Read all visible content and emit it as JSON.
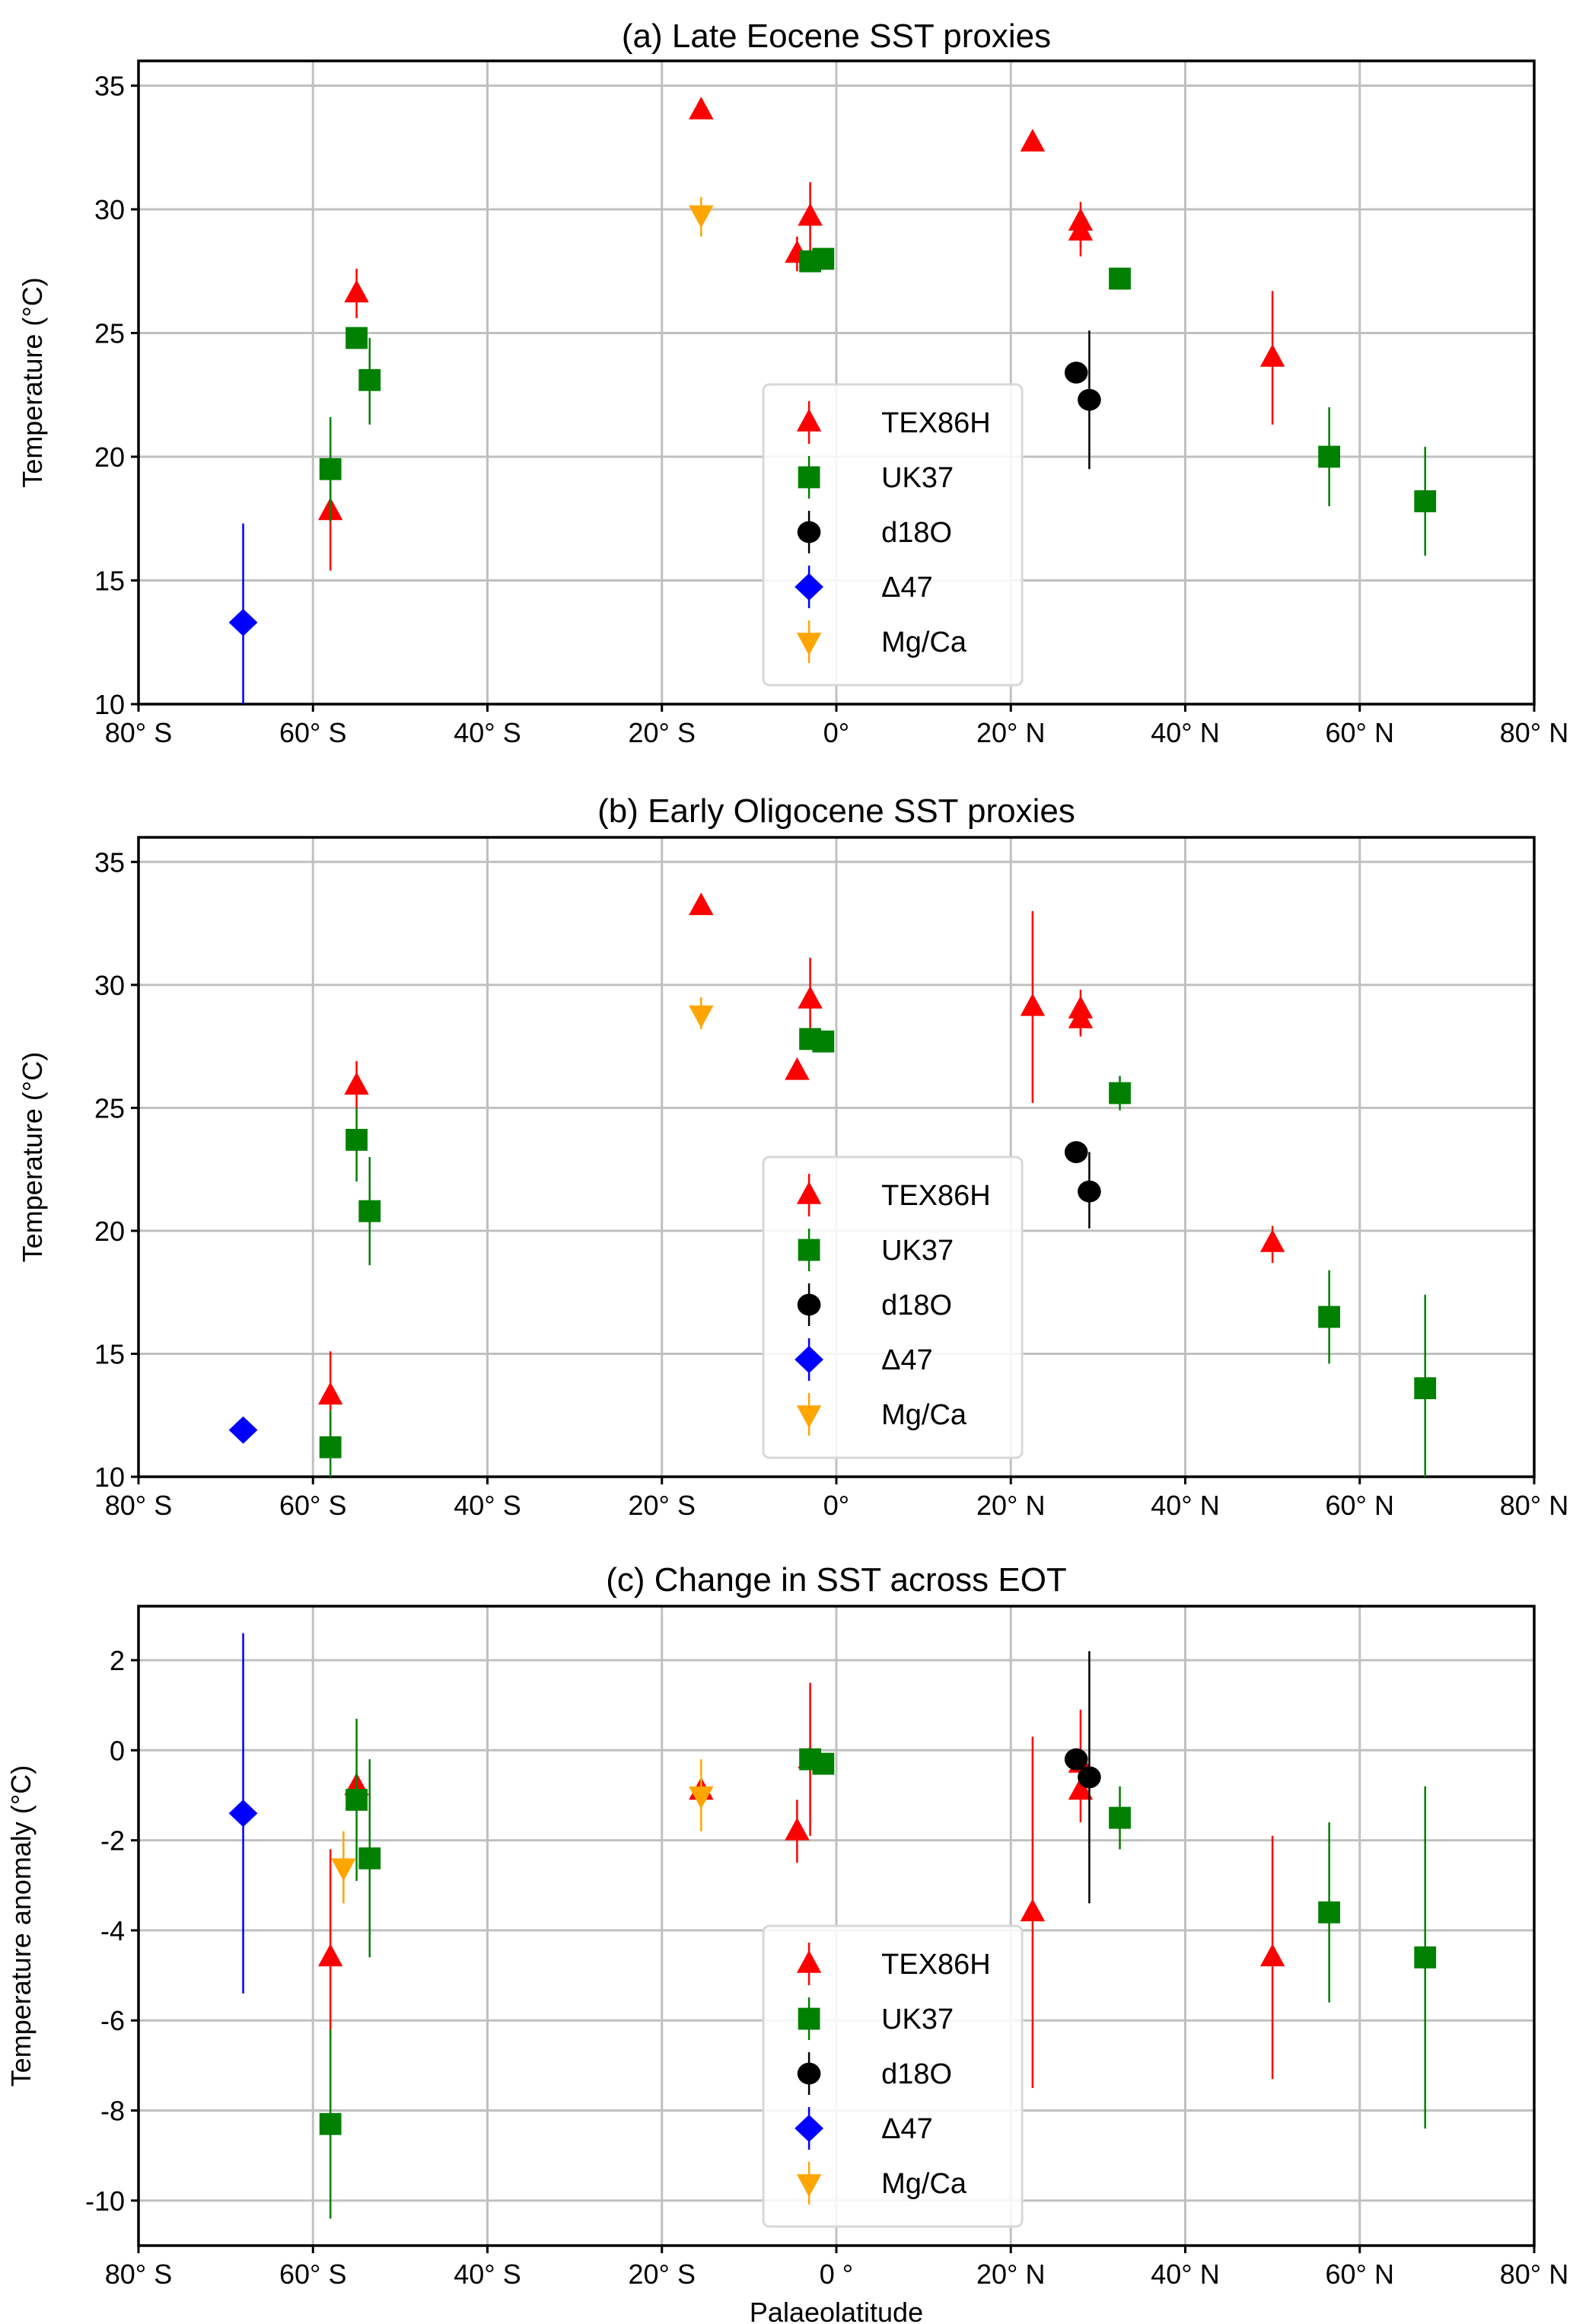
{
  "figure": {
    "xlabel": "Palaeolatitude",
    "legend_placement": "center-bottom"
  },
  "colors": {
    "TEX86H": "#ff0000",
    "UK37": "#008000",
    "d18O": "#000000",
    "D47": "#0000ff",
    "MgCa": "#ffa500",
    "grid": "#c0c0c0"
  },
  "chart_data": [
    {
      "type": "scatter",
      "title": "(a) Late Eocene SST proxies",
      "xlabel": "",
      "ylabel": "Temperature (°C)",
      "xlim": [
        -80,
        80
      ],
      "ylim": [
        10,
        36
      ],
      "grid": true,
      "xticks": [
        -80,
        -60,
        -40,
        -20,
        0,
        20,
        40,
        60,
        80
      ],
      "xtick_labels": [
        "80° S",
        "60° S",
        "40° S",
        "20° S",
        "0°",
        "20° N",
        "40° N",
        "60° N",
        "80° N"
      ],
      "yticks": [
        10,
        15,
        20,
        25,
        30,
        35
      ],
      "ytick_labels": [
        "10",
        "15",
        "20",
        "25",
        "30",
        "35"
      ],
      "legend": [
        "TEX86H",
        "UK37",
        "d18O",
        "Δ47",
        "Mg/Ca"
      ],
      "series": [
        {
          "name": "TEX86H",
          "marker": "triangle-up",
          "points": [
            {
              "x": -58,
              "y": 17.8,
              "lo": 15.4,
              "hi": 20.0
            },
            {
              "x": -55,
              "y": 26.6,
              "lo": 25.6,
              "hi": 27.6
            },
            {
              "x": -15.5,
              "y": 34.0,
              "lo": 34.0,
              "hi": 34.0
            },
            {
              "x": -4.5,
              "y": 28.2,
              "lo": 27.5,
              "hi": 28.9
            },
            {
              "x": -3,
              "y": 29.7,
              "lo": 28.3,
              "hi": 31.1
            },
            {
              "x": 22.5,
              "y": 32.7,
              "lo": 32.4,
              "hi": 33.0
            },
            {
              "x": 28,
              "y": 29.5,
              "lo": 28.1,
              "hi": 30.3
            },
            {
              "x": 28,
              "y": 29.1,
              "lo": 28.5,
              "hi": 29.7
            },
            {
              "x": 50,
              "y": 24.0,
              "lo": 21.3,
              "hi": 26.7
            }
          ]
        },
        {
          "name": "UK37",
          "marker": "square",
          "points": [
            {
              "x": -58,
              "y": 19.5,
              "lo": 17.4,
              "hi": 21.6
            },
            {
              "x": -55,
              "y": 24.8,
              "lo": 24.8,
              "hi": 24.8
            },
            {
              "x": -53.5,
              "y": 23.1,
              "lo": 21.3,
              "hi": 24.8
            },
            {
              "x": -3,
              "y": 27.9,
              "lo": 27.9,
              "hi": 27.9
            },
            {
              "x": -1.5,
              "y": 28.0,
              "lo": 28.0,
              "hi": 28.0
            },
            {
              "x": 32.5,
              "y": 27.2,
              "lo": 27.2,
              "hi": 27.2
            },
            {
              "x": 56.5,
              "y": 20.0,
              "lo": 18.0,
              "hi": 22.0
            },
            {
              "x": 67.5,
              "y": 18.2,
              "lo": 16.0,
              "hi": 20.4
            }
          ]
        },
        {
          "name": "d18O",
          "marker": "circle",
          "points": [
            {
              "x": 27.5,
              "y": 23.4,
              "lo": 23.4,
              "hi": 23.4
            },
            {
              "x": 29,
              "y": 22.3,
              "lo": 19.5,
              "hi": 25.1
            }
          ]
        },
        {
          "name": "Δ47",
          "marker": "diamond",
          "points": [
            {
              "x": -68,
              "y": 13.3,
              "lo": 9.3,
              "hi": 17.3
            }
          ]
        },
        {
          "name": "Mg/Ca",
          "marker": "triangle-down",
          "points": [
            {
              "x": -15.5,
              "y": 29.8,
              "lo": 28.9,
              "hi": 30.5
            }
          ]
        }
      ]
    },
    {
      "type": "scatter",
      "title": "(b) Early Oligocene SST proxies",
      "xlabel": "",
      "ylabel": "Temperature (°C)",
      "xlim": [
        -80,
        80
      ],
      "ylim": [
        10,
        36
      ],
      "grid": true,
      "xticks": [
        -80,
        -60,
        -40,
        -20,
        0,
        20,
        40,
        60,
        80
      ],
      "xtick_labels": [
        "80° S",
        "60° S",
        "40° S",
        "20° S",
        "0°",
        "20° N",
        "40° N",
        "60° N",
        "80° N"
      ],
      "yticks": [
        10,
        15,
        20,
        25,
        30,
        35
      ],
      "ytick_labels": [
        "10",
        "15",
        "20",
        "25",
        "30",
        "35"
      ],
      "legend": [
        "TEX86H",
        "UK37",
        "d18O",
        "Δ47",
        "Mg/Ca"
      ],
      "series": [
        {
          "name": "TEX86H",
          "marker": "triangle-up",
          "points": [
            {
              "x": -58,
              "y": 13.3,
              "lo": 11.6,
              "hi": 15.1
            },
            {
              "x": -55,
              "y": 25.9,
              "lo": 25.0,
              "hi": 26.9
            },
            {
              "x": -15.5,
              "y": 33.2,
              "lo": 33.2,
              "hi": 33.2
            },
            {
              "x": -4.5,
              "y": 26.5,
              "lo": 26.2,
              "hi": 26.8
            },
            {
              "x": -3,
              "y": 29.4,
              "lo": 27.8,
              "hi": 31.1
            },
            {
              "x": 22.5,
              "y": 29.1,
              "lo": 25.2,
              "hi": 33.0
            },
            {
              "x": 28,
              "y": 29.0,
              "lo": 28.0,
              "hi": 29.8
            },
            {
              "x": 28,
              "y": 28.6,
              "lo": 27.9,
              "hi": 29.2
            },
            {
              "x": 50,
              "y": 19.5,
              "lo": 18.7,
              "hi": 20.2
            }
          ]
        },
        {
          "name": "UK37",
          "marker": "square",
          "points": [
            {
              "x": -58,
              "y": 11.2,
              "lo": 10.0,
              "hi": 12.7
            },
            {
              "x": -55,
              "y": 23.7,
              "lo": 22.0,
              "hi": 25.0
            },
            {
              "x": -53.5,
              "y": 20.8,
              "lo": 18.6,
              "hi": 23.0
            },
            {
              "x": -3,
              "y": 27.8,
              "lo": 27.8,
              "hi": 27.8
            },
            {
              "x": -1.5,
              "y": 27.7,
              "lo": 27.7,
              "hi": 27.7
            },
            {
              "x": 32.5,
              "y": 25.6,
              "lo": 24.9,
              "hi": 26.3
            },
            {
              "x": 56.5,
              "y": 16.5,
              "lo": 14.6,
              "hi": 18.4
            },
            {
              "x": 67.5,
              "y": 13.6,
              "lo": 10.0,
              "hi": 17.4
            }
          ]
        },
        {
          "name": "d18O",
          "marker": "circle",
          "points": [
            {
              "x": 27.5,
              "y": 23.2,
              "lo": 23.2,
              "hi": 23.2
            },
            {
              "x": 29,
              "y": 21.6,
              "lo": 20.1,
              "hi": 23.2
            }
          ]
        },
        {
          "name": "Δ47",
          "marker": "diamond",
          "points": [
            {
              "x": -68,
              "y": 11.9,
              "lo": 11.9,
              "hi": 11.9
            }
          ]
        },
        {
          "name": "Mg/Ca",
          "marker": "triangle-down",
          "points": [
            {
              "x": -15.5,
              "y": 28.8,
              "lo": 28.2,
              "hi": 29.5
            }
          ]
        }
      ]
    },
    {
      "type": "scatter",
      "title": "(c) Change in SST across EOT",
      "xlabel": "Palaeolatitude",
      "ylabel": "Temperature anomaly (°C)",
      "xlim": [
        -80,
        80
      ],
      "ylim": [
        -11,
        3.2
      ],
      "grid": true,
      "xticks": [
        -80,
        -60,
        -40,
        -20,
        0,
        20,
        40,
        60,
        80
      ],
      "xtick_labels": [
        "80° S",
        "60° S",
        "40° S",
        "20° S",
        "0 °",
        "20° N",
        "40° N",
        "60° N",
        "80° N"
      ],
      "yticks": [
        -10,
        -8,
        -6,
        -4,
        -2,
        0,
        2
      ],
      "ytick_labels": [
        "-10",
        "-8",
        "-6",
        "-4",
        "-2",
        "0",
        "2"
      ],
      "legend": [
        "TEX86H",
        "UK37",
        "d18O",
        "Δ47",
        "Mg/Ca"
      ],
      "series": [
        {
          "name": "TEX86H",
          "marker": "triangle-up",
          "points": [
            {
              "x": -58,
              "y": -4.6,
              "lo": -6.3,
              "hi": -2.2
            },
            {
              "x": -55,
              "y": -0.8,
              "lo": -1.2,
              "hi": -0.5
            },
            {
              "x": -15.5,
              "y": -0.9,
              "lo": -0.9,
              "hi": -0.9
            },
            {
              "x": -4.5,
              "y": -1.8,
              "lo": -2.5,
              "hi": -1.1
            },
            {
              "x": -3,
              "y": -0.2,
              "lo": -1.9,
              "hi": 1.5
            },
            {
              "x": 22.5,
              "y": -3.6,
              "lo": -7.5,
              "hi": 0.3
            },
            {
              "x": 28,
              "y": -0.3,
              "lo": -0.3,
              "hi": -0.3
            },
            {
              "x": 28,
              "y": -0.9,
              "lo": -1.6,
              "hi": 0.9
            },
            {
              "x": 50,
              "y": -4.6,
              "lo": -7.3,
              "hi": -1.9
            }
          ]
        },
        {
          "name": "UK37",
          "marker": "square",
          "points": [
            {
              "x": -58,
              "y": -8.3,
              "lo": -10.4,
              "hi": -6.2
            },
            {
              "x": -55,
              "y": -1.1,
              "lo": -2.9,
              "hi": 0.7
            },
            {
              "x": -53.5,
              "y": -2.4,
              "lo": -4.6,
              "hi": -0.2
            },
            {
              "x": -3,
              "y": -0.2,
              "lo": -0.2,
              "hi": -0.2
            },
            {
              "x": -1.5,
              "y": -0.3,
              "lo": -0.3,
              "hi": -0.3
            },
            {
              "x": 32.5,
              "y": -1.5,
              "lo": -2.2,
              "hi": -0.8
            },
            {
              "x": 56.5,
              "y": -3.6,
              "lo": -5.6,
              "hi": -1.6
            },
            {
              "x": 67.5,
              "y": -4.6,
              "lo": -8.4,
              "hi": -0.8
            }
          ]
        },
        {
          "name": "d18O",
          "marker": "circle",
          "points": [
            {
              "x": 27.5,
              "y": -0.2,
              "lo": -0.2,
              "hi": -0.2
            },
            {
              "x": 29,
              "y": -0.6,
              "lo": -3.4,
              "hi": 2.2
            }
          ]
        },
        {
          "name": "Δ47",
          "marker": "diamond",
          "points": [
            {
              "x": -68,
              "y": -1.4,
              "lo": -5.4,
              "hi": 2.6
            }
          ]
        },
        {
          "name": "Mg/Ca",
          "marker": "triangle-down",
          "points": [
            {
              "x": -56.5,
              "y": -2.6,
              "lo": -3.4,
              "hi": -1.8
            },
            {
              "x": -15.5,
              "y": -1.0,
              "lo": -1.8,
              "hi": -0.2
            }
          ]
        }
      ]
    }
  ]
}
